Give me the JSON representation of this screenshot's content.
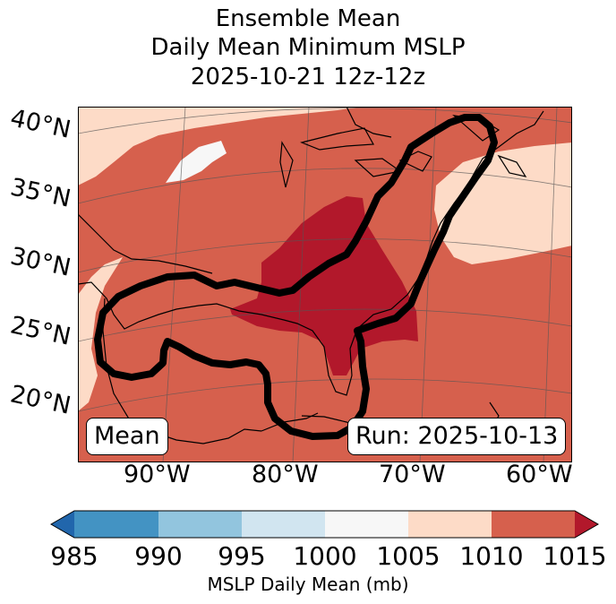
{
  "title": {
    "line1": "Ensemble Mean",
    "line2": "Daily Mean Minimum MSLP",
    "line3": "2025-10-21 12z-12z"
  },
  "map": {
    "latitude_labels": [
      "40°N",
      "35°N",
      "30°N",
      "25°N",
      "20°N"
    ],
    "longitude_labels": [
      "90°W",
      "80°W",
      "70°W",
      "60°W"
    ],
    "mode_badge": "Mean",
    "run_badge": "Run: 2025-10-13",
    "contour_color": "#000000"
  },
  "colorbar": {
    "label": "MSLP Daily Mean (mb)",
    "ticks": [
      "985",
      "990",
      "995",
      "1000",
      "1005",
      "1010",
      "1015"
    ],
    "bins": [
      {
        "range": "<985",
        "color": "#2166ac"
      },
      {
        "range": "985-990",
        "color": "#4393c3"
      },
      {
        "range": "990-995",
        "color": "#92c5de"
      },
      {
        "range": "995-1000",
        "color": "#d1e5f0"
      },
      {
        "range": "1000-1005",
        "color": "#f7f7f7"
      },
      {
        "range": "1005-1010",
        "color": "#fddbc7"
      },
      {
        "range": "1010-1015",
        "color": "#d6604d"
      },
      {
        "range": ">1015",
        "color": "#b2182b"
      }
    ]
  }
}
